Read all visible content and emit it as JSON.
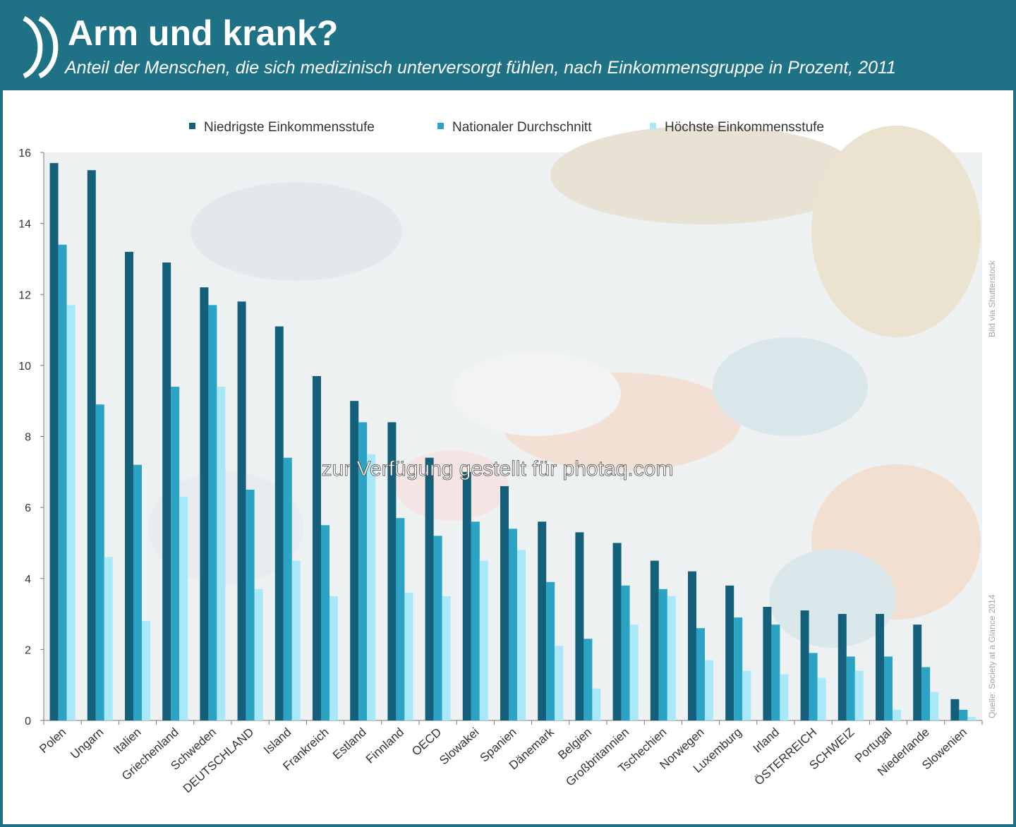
{
  "header": {
    "title": "Arm und krank?",
    "subtitle": "Anteil der Menschen, die sich medizinisch unterversorgt fühlen, nach Einkommensgruppe in Prozent, 2011"
  },
  "credits": {
    "image": "Bild via Shutterstock",
    "source": "Quelle: Society at a Glance 2014",
    "watermark": "zur Verfügung gestellt für photaq.com"
  },
  "colors": {
    "header": "#1f7185",
    "series_low": "#14607a",
    "series_avg": "#2aa3c4",
    "series_high": "#a8e8f8",
    "photo_bg": "#eef2f3"
  },
  "chart_data": {
    "type": "bar",
    "categories": [
      "Polen",
      "Ungarn",
      "Italien",
      "Griechenland",
      "Schweden",
      "DEUTSCHLAND",
      "Island",
      "Frankreich",
      "Estland",
      "Finnland",
      "OECD",
      "Slowakei",
      "Spanien",
      "Dänemark",
      "Belgien",
      "Großbritannien",
      "Tschechien",
      "Norwegen",
      "Luxemburg",
      "Irland",
      "ÖSTERREICH",
      "SCHWEIZ",
      "Portugal",
      "Niederlande",
      "Slowenien"
    ],
    "series": [
      {
        "name": "Niedrigste Einkommensstufe",
        "values": [
          15.7,
          15.5,
          13.2,
          12.9,
          12.2,
          11.8,
          11.1,
          9.7,
          9.0,
          8.4,
          7.4,
          7.0,
          6.6,
          5.6,
          5.3,
          5.0,
          4.5,
          4.2,
          3.8,
          3.2,
          3.1,
          3.0,
          3.0,
          2.7,
          0.6
        ]
      },
      {
        "name": "Nationaler Durchschnitt",
        "values": [
          13.4,
          8.9,
          7.2,
          9.4,
          11.7,
          6.5,
          7.4,
          5.5,
          8.4,
          5.7,
          5.2,
          5.6,
          5.4,
          3.9,
          2.3,
          3.8,
          3.7,
          2.6,
          2.9,
          2.7,
          1.9,
          1.8,
          1.8,
          1.5,
          0.3
        ]
      },
      {
        "name": "Höchste Einkommensstufe",
        "values": [
          11.7,
          4.6,
          2.8,
          6.3,
          9.4,
          3.7,
          4.5,
          3.5,
          7.5,
          3.6,
          3.5,
          4.5,
          4.8,
          2.1,
          0.9,
          2.7,
          3.5,
          1.7,
          1.4,
          1.3,
          1.2,
          1.4,
          0.3,
          0.8,
          0.1
        ]
      }
    ],
    "ylim": [
      0,
      16
    ],
    "yticks": [
      0,
      2,
      4,
      6,
      8,
      10,
      12,
      14,
      16
    ],
    "legend_position": "top-center",
    "grid": false
  }
}
